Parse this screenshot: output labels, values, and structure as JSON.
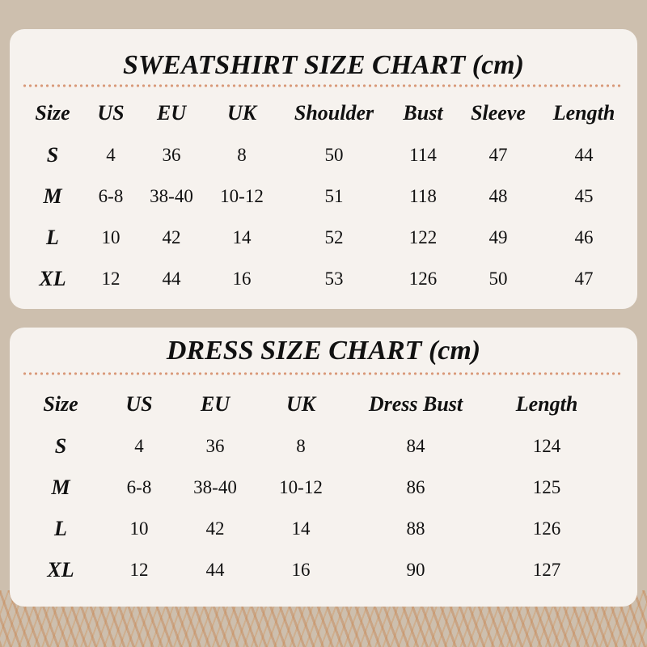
{
  "sweatshirt": {
    "title": "SWEATSHIRT SIZE CHART (cm)",
    "headers": [
      "Size",
      "US",
      "EU",
      "UK",
      "Shoulder",
      "Bust",
      "Sleeve",
      "Length"
    ],
    "rows": [
      [
        "S",
        "4",
        "36",
        "8",
        "50",
        "114",
        "47",
        "44"
      ],
      [
        "M",
        "6-8",
        "38-40",
        "10-12",
        "51",
        "118",
        "48",
        "45"
      ],
      [
        "L",
        "10",
        "42",
        "14",
        "52",
        "122",
        "49",
        "46"
      ],
      [
        "XL",
        "12",
        "44",
        "16",
        "53",
        "126",
        "50",
        "47"
      ]
    ]
  },
  "dress": {
    "title": "DRESS SIZE CHART (cm)",
    "headers": [
      "Size",
      "US",
      "EU",
      "UK",
      "Dress Bust",
      "Length"
    ],
    "rows": [
      [
        "S",
        "4",
        "36",
        "8",
        "84",
        "124"
      ],
      [
        "M",
        "6-8",
        "38-40",
        "10-12",
        "86",
        "125"
      ],
      [
        "L",
        "10",
        "42",
        "14",
        "88",
        "126"
      ],
      [
        "XL",
        "12",
        "44",
        "16",
        "90",
        "127"
      ]
    ]
  },
  "colors": {
    "background": "#cdbfae",
    "card": "#f6f2ee",
    "dots": "#d99a7a"
  }
}
